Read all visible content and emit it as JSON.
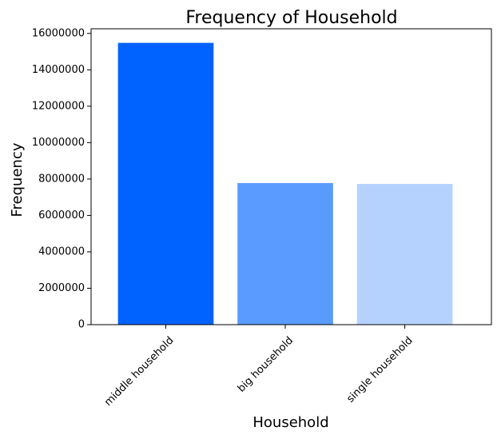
{
  "chart_data": {
    "type": "bar",
    "title": "Frequency of Household",
    "xlabel": "Household",
    "ylabel": "Frequency",
    "categories": [
      "middle household",
      "big household",
      "single household"
    ],
    "values": [
      15480000,
      7780000,
      7730000
    ],
    "colors": [
      "#0062ff",
      "#5a9bff",
      "#b5d2ff"
    ],
    "yticks": [
      0,
      2000000,
      4000000,
      6000000,
      8000000,
      10000000,
      12000000,
      14000000,
      16000000
    ],
    "ytick_labels": [
      "0",
      "2000000",
      "4000000",
      "6000000",
      "8000000",
      "10000000",
      "12000000",
      "14000000",
      "16000000"
    ],
    "ylim": [
      0,
      16254000
    ],
    "grid": false,
    "legend": "none"
  }
}
